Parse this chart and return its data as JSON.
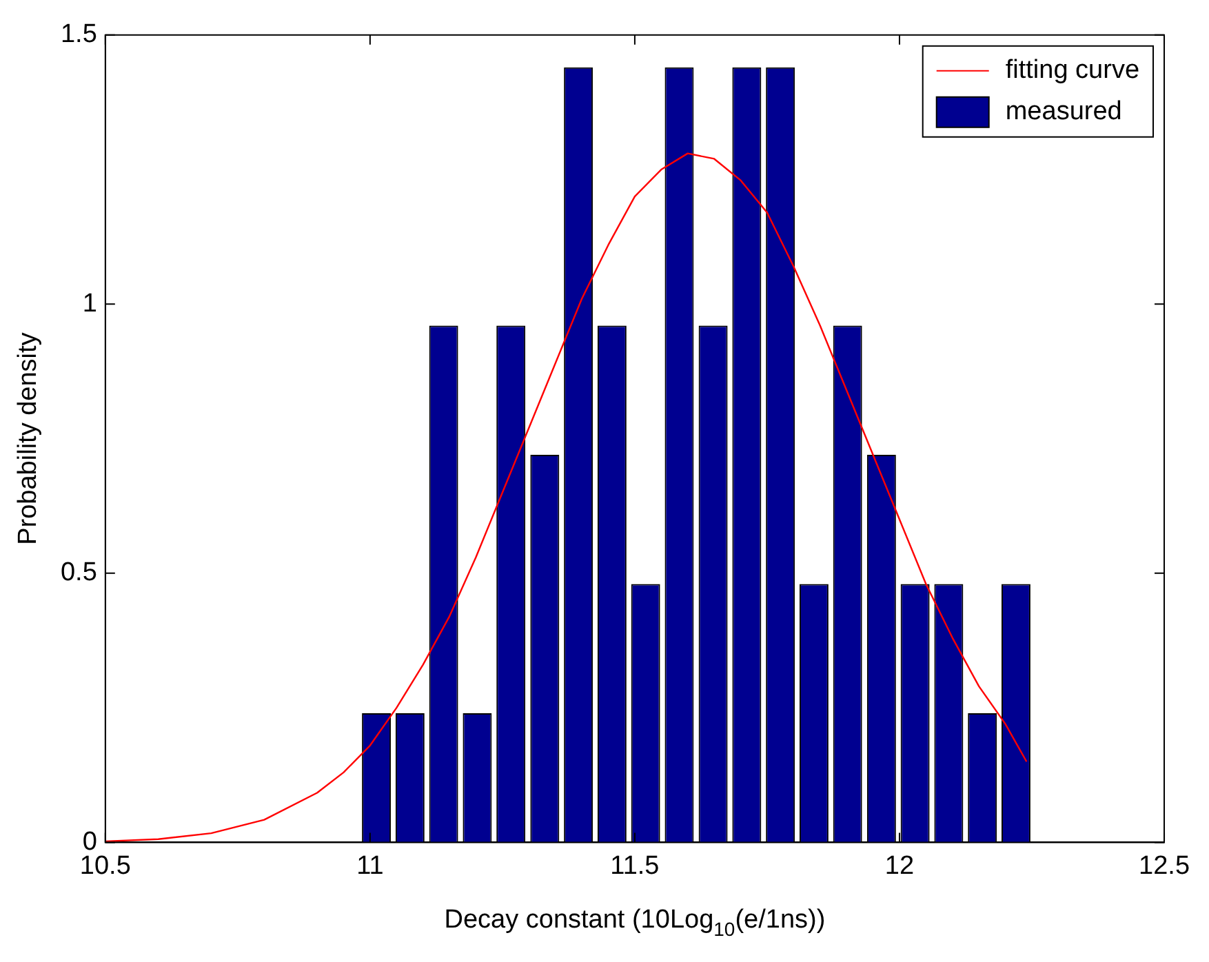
{
  "chart_data": {
    "type": "histogram",
    "xlabel": "Decay constant (10Log$_{10}$(e/1ns))",
    "ylabel": "Probability density",
    "xlim": [
      10.5,
      12.5
    ],
    "xticks": [
      10.5,
      11,
      11.5,
      12,
      12.5
    ],
    "ylim": [
      0,
      1.5
    ],
    "yticks": [
      0,
      0.5,
      1,
      1.5
    ],
    "grid": false,
    "legend": "top right",
    "series": [
      {
        "type": "line",
        "name": "fitting curve",
        "color": "#ff0000",
        "x": [
          10.5,
          10.6,
          10.7,
          10.8,
          10.9,
          10.95,
          11.0,
          11.05,
          11.1,
          11.15,
          11.2,
          11.25,
          11.3,
          11.35,
          11.4,
          11.45,
          11.5,
          11.55,
          11.6,
          11.65,
          11.7,
          11.75,
          11.8,
          11.85,
          11.9,
          11.95,
          12.0,
          12.05,
          12.1,
          12.15,
          12.2,
          12.24
        ],
        "values": [
          0.002,
          0.006,
          0.017,
          0.042,
          0.092,
          0.13,
          0.18,
          0.25,
          0.33,
          0.42,
          0.53,
          0.65,
          0.77,
          0.89,
          1.01,
          1.11,
          1.2,
          1.25,
          1.28,
          1.27,
          1.23,
          1.17,
          1.07,
          0.96,
          0.84,
          0.72,
          0.6,
          0.48,
          0.38,
          0.29,
          0.22,
          0.15
        ]
      },
      {
        "name": "measured",
        "color": "#000090",
        "bins": [
          10.98,
          11.044,
          11.107,
          11.171,
          11.234,
          11.298,
          11.362,
          11.425,
          11.489,
          11.552,
          11.616,
          11.68,
          11.743,
          11.807,
          11.87,
          11.934,
          11.998,
          12.061,
          12.125,
          12.188,
          12.252
        ],
        "values": [
          0.24,
          0.24,
          0.96,
          0.24,
          0.96,
          0.72,
          1.44,
          0.96,
          0.48,
          1.44,
          0.96,
          1.44,
          1.44,
          0.48,
          0.96,
          0.72,
          0.48,
          0.48,
          0.24,
          0.48
        ]
      }
    ]
  }
}
